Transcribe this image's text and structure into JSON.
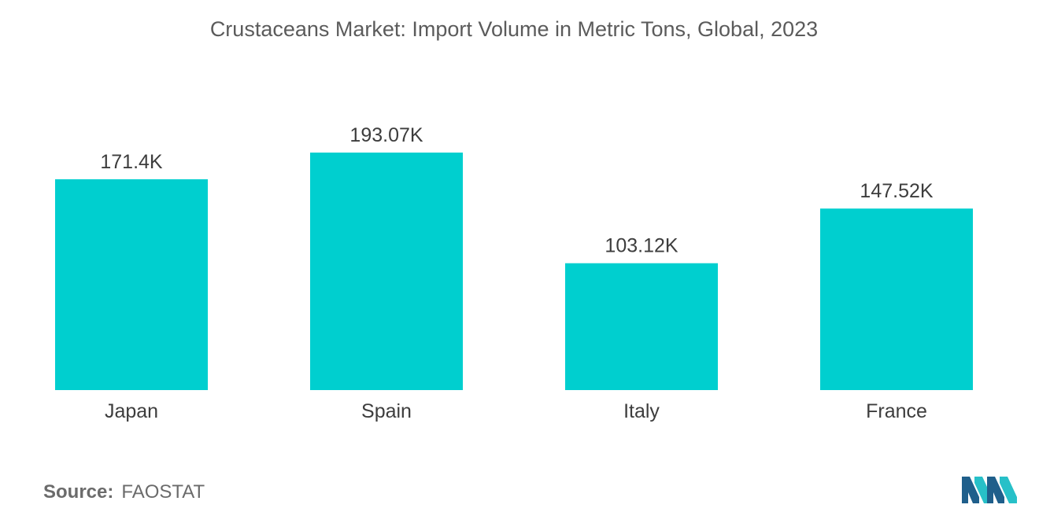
{
  "chart_data": {
    "type": "bar",
    "title": "Crustaceans Market: Import Volume in Metric Tons, Global, 2023",
    "xlabel": "",
    "ylabel": "",
    "categories": [
      "Japan",
      "Spain",
      "Italy",
      "France"
    ],
    "values": [
      171.4,
      193.07,
      103.12,
      147.52
    ],
    "value_labels": [
      "171.4K",
      "193.07K",
      "103.12K",
      "147.52K"
    ],
    "unit": "K",
    "ylim": [
      0,
      193.07
    ],
    "grid": false,
    "legend": "none",
    "bar_color": "#00cfcf"
  },
  "source": {
    "label": "Source:",
    "value": "FAOSTAT"
  },
  "logo": {
    "icon": "mordor-intelligence-logo-icon",
    "colors": [
      "#1f5f8b",
      "#27c0c8"
    ]
  }
}
